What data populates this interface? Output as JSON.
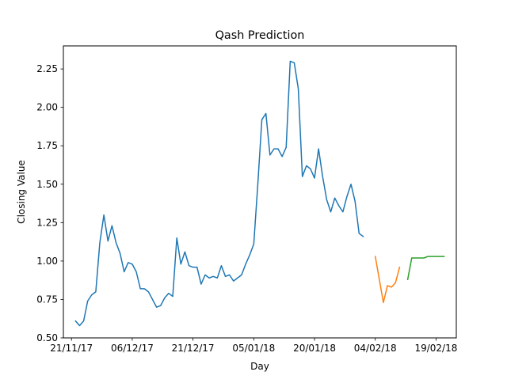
{
  "chart_data": {
    "type": "line",
    "title": "Qash Prediction",
    "xlabel": "Day",
    "ylabel": "Closing Value",
    "xlim": [
      "2017-11-19",
      "2018-02-24"
    ],
    "ylim": [
      0.5,
      2.4
    ],
    "yticks": [
      0.5,
      0.75,
      1.0,
      1.25,
      1.5,
      1.75,
      2.0,
      2.25
    ],
    "ytick_labels": [
      "0.50",
      "0.75",
      "1.00",
      "1.25",
      "1.50",
      "1.75",
      "2.00",
      "2.25"
    ],
    "xticks": [
      "2017-11-21",
      "2017-12-06",
      "2017-12-21",
      "2018-01-05",
      "2018-01-20",
      "2018-02-04",
      "2018-02-19"
    ],
    "xtick_labels": [
      "21/11/17",
      "06/12/17",
      "21/12/17",
      "05/01/18",
      "20/01/18",
      "04/02/18",
      "19/02/18"
    ],
    "grid": false,
    "series": [
      {
        "color": "#1f77b4",
        "points": [
          [
            "2017-11-22",
            0.61
          ],
          [
            "2017-11-23",
            0.58
          ],
          [
            "2017-11-24",
            0.61
          ],
          [
            "2017-11-25",
            0.74
          ],
          [
            "2017-11-26",
            0.78
          ],
          [
            "2017-11-27",
            0.8
          ],
          [
            "2017-11-28",
            1.12
          ],
          [
            "2017-11-29",
            1.3
          ],
          [
            "2017-11-30",
            1.13
          ],
          [
            "2017-12-01",
            1.23
          ],
          [
            "2017-12-02",
            1.12
          ],
          [
            "2017-12-03",
            1.05
          ],
          [
            "2017-12-04",
            0.93
          ],
          [
            "2017-12-05",
            0.99
          ],
          [
            "2017-12-06",
            0.98
          ],
          [
            "2017-12-07",
            0.93
          ],
          [
            "2017-12-08",
            0.82
          ],
          [
            "2017-12-09",
            0.82
          ],
          [
            "2017-12-10",
            0.8
          ],
          [
            "2017-12-11",
            0.75
          ],
          [
            "2017-12-12",
            0.7
          ],
          [
            "2017-12-13",
            0.71
          ],
          [
            "2017-12-14",
            0.76
          ],
          [
            "2017-12-15",
            0.79
          ],
          [
            "2017-12-16",
            0.77
          ],
          [
            "2017-12-17",
            1.15
          ],
          [
            "2017-12-18",
            0.98
          ],
          [
            "2017-12-19",
            1.06
          ],
          [
            "2017-12-20",
            0.97
          ],
          [
            "2017-12-21",
            0.96
          ],
          [
            "2017-12-22",
            0.96
          ],
          [
            "2017-12-23",
            0.85
          ],
          [
            "2017-12-24",
            0.91
          ],
          [
            "2017-12-25",
            0.89
          ],
          [
            "2017-12-26",
            0.9
          ],
          [
            "2017-12-27",
            0.89
          ],
          [
            "2017-12-28",
            0.97
          ],
          [
            "2017-12-29",
            0.9
          ],
          [
            "2017-12-30",
            0.91
          ],
          [
            "2017-12-31",
            0.87
          ],
          [
            "2018-01-01",
            0.89
          ],
          [
            "2018-01-02",
            0.91
          ],
          [
            "2018-01-03",
            0.98
          ],
          [
            "2018-01-04",
            1.04
          ],
          [
            "2018-01-05",
            1.11
          ],
          [
            "2018-01-06",
            1.5
          ],
          [
            "2018-01-07",
            1.92
          ],
          [
            "2018-01-08",
            1.96
          ],
          [
            "2018-01-09",
            1.69
          ],
          [
            "2018-01-10",
            1.73
          ],
          [
            "2018-01-11",
            1.73
          ],
          [
            "2018-01-12",
            1.68
          ],
          [
            "2018-01-13",
            1.74
          ],
          [
            "2018-01-14",
            2.3
          ],
          [
            "2018-01-15",
            2.29
          ],
          [
            "2018-01-16",
            2.12
          ],
          [
            "2018-01-17",
            1.55
          ],
          [
            "2018-01-18",
            1.62
          ],
          [
            "2018-01-19",
            1.6
          ],
          [
            "2018-01-20",
            1.54
          ],
          [
            "2018-01-21",
            1.73
          ],
          [
            "2018-01-22",
            1.55
          ],
          [
            "2018-01-23",
            1.4
          ],
          [
            "2018-01-24",
            1.32
          ],
          [
            "2018-01-25",
            1.41
          ],
          [
            "2018-01-26",
            1.36
          ],
          [
            "2018-01-27",
            1.32
          ],
          [
            "2018-01-28",
            1.42
          ],
          [
            "2018-01-29",
            1.5
          ],
          [
            "2018-01-30",
            1.39
          ],
          [
            "2018-01-31",
            1.18
          ],
          [
            "2018-02-01",
            1.16
          ]
        ]
      },
      {
        "color": "#ff7f0e",
        "points": [
          [
            "2018-02-04",
            1.03
          ],
          [
            "2018-02-06",
            0.73
          ],
          [
            "2018-02-07",
            0.84
          ],
          [
            "2018-02-08",
            0.83
          ],
          [
            "2018-02-09",
            0.86
          ],
          [
            "2018-02-10",
            0.96
          ]
        ]
      },
      {
        "color": "#2ca02c",
        "points": [
          [
            "2018-02-12",
            0.88
          ],
          [
            "2018-02-13",
            1.02
          ],
          [
            "2018-02-14",
            1.02
          ],
          [
            "2018-02-15",
            1.02
          ],
          [
            "2018-02-16",
            1.02
          ],
          [
            "2018-02-17",
            1.03
          ],
          [
            "2018-02-18",
            1.03
          ],
          [
            "2018-02-19",
            1.03
          ],
          [
            "2018-02-20",
            1.03
          ],
          [
            "2018-02-21",
            1.03
          ]
        ]
      }
    ]
  }
}
